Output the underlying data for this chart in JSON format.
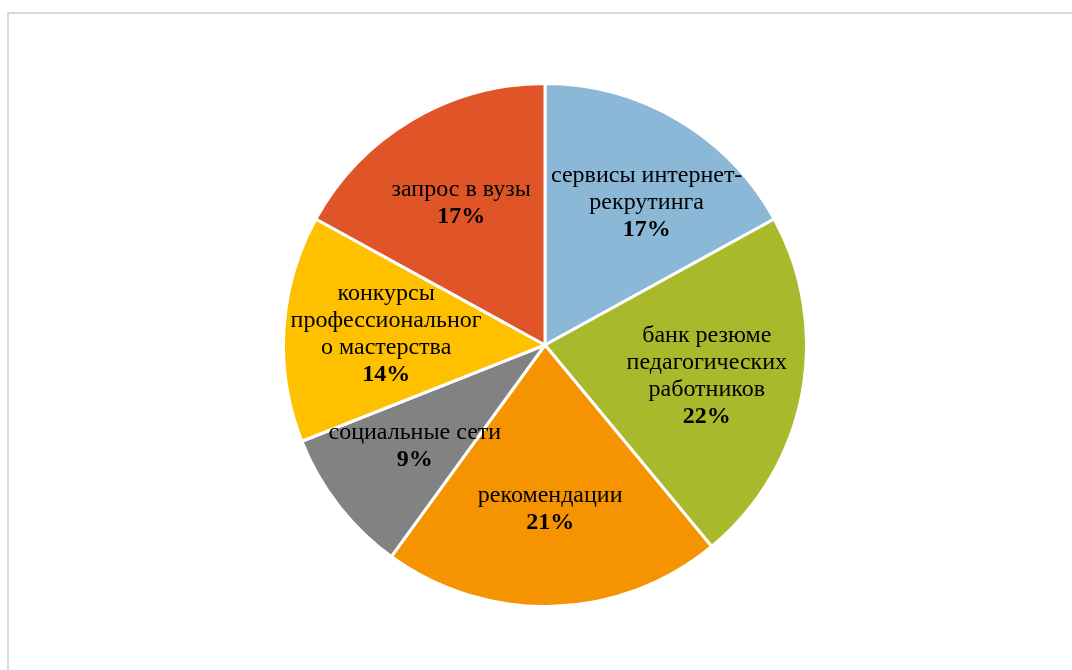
{
  "chart_data": {
    "type": "pie",
    "categories": [
      "сервисы интернет-рекрутинга",
      "банк резюме педагогических работников",
      "рекомендации",
      "социальные сети",
      "конкурсы профессионального мастерства",
      "запрос в вузы"
    ],
    "values": [
      17,
      22,
      21,
      9,
      14,
      17
    ],
    "colors": [
      "#8ab8d6",
      "#a8b92b",
      "#f59300",
      "#828282",
      "#ffc000",
      "#e05527"
    ],
    "value_labels": [
      "17%",
      "22%",
      "21%",
      "9%",
      "14%",
      "17%"
    ]
  }
}
